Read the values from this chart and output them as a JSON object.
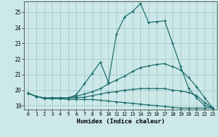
{
  "title": "",
  "xlabel": "Humidex (Indice chaleur)",
  "background_color": "#cce8e8",
  "line_color": "#1a6b6b",
  "grid_color": "#aacccc",
  "xlim": [
    -0.5,
    23.5
  ],
  "ylim": [
    18.75,
    25.7
  ],
  "yticks": [
    19,
    20,
    21,
    22,
    23,
    24,
    25
  ],
  "xticks": [
    0,
    1,
    2,
    3,
    4,
    5,
    6,
    7,
    8,
    9,
    10,
    11,
    12,
    13,
    14,
    15,
    16,
    17,
    18,
    19,
    20,
    21,
    22,
    23
  ],
  "lines": [
    {
      "x": [
        0,
        1,
        2,
        3,
        4,
        5,
        6,
        7,
        8,
        9,
        10,
        11,
        12,
        13,
        14,
        15,
        16,
        17,
        18,
        19,
        20,
        21,
        22,
        23
      ],
      "y": [
        19.8,
        19.6,
        19.5,
        19.5,
        19.5,
        19.5,
        19.7,
        20.4,
        21.1,
        21.8,
        20.5,
        23.6,
        24.7,
        25.05,
        25.55,
        24.35,
        24.4,
        24.45,
        23.0,
        21.5,
        20.1,
        19.5,
        19.0,
        18.85
      ]
    },
    {
      "x": [
        0,
        1,
        2,
        3,
        4,
        5,
        6,
        7,
        8,
        9,
        10,
        11,
        12,
        13,
        14,
        15,
        16,
        17,
        18,
        19,
        20,
        21,
        22,
        23
      ],
      "y": [
        19.8,
        19.6,
        19.5,
        19.5,
        19.5,
        19.5,
        19.6,
        19.75,
        19.9,
        20.1,
        20.4,
        20.65,
        20.9,
        21.2,
        21.45,
        21.55,
        21.65,
        21.7,
        21.5,
        21.3,
        20.8,
        20.2,
        19.5,
        18.85
      ]
    },
    {
      "x": [
        0,
        1,
        2,
        3,
        4,
        5,
        6,
        7,
        8,
        9,
        10,
        11,
        12,
        13,
        14,
        15,
        16,
        17,
        18,
        19,
        20,
        21,
        22,
        23
      ],
      "y": [
        19.8,
        19.6,
        19.45,
        19.45,
        19.45,
        19.4,
        19.4,
        19.4,
        19.4,
        19.35,
        19.3,
        19.25,
        19.2,
        19.15,
        19.1,
        19.05,
        19.0,
        18.95,
        18.9,
        18.85,
        18.85,
        18.85,
        18.85,
        18.85
      ]
    },
    {
      "x": [
        0,
        1,
        2,
        3,
        4,
        5,
        6,
        7,
        8,
        9,
        10,
        11,
        12,
        13,
        14,
        15,
        16,
        17,
        18,
        19,
        20,
        21,
        22,
        23
      ],
      "y": [
        19.8,
        19.6,
        19.5,
        19.5,
        19.5,
        19.5,
        19.5,
        19.55,
        19.65,
        19.75,
        19.85,
        19.9,
        20.0,
        20.05,
        20.1,
        20.1,
        20.1,
        20.1,
        20.0,
        19.95,
        19.85,
        19.65,
        19.2,
        18.85
      ]
    }
  ]
}
